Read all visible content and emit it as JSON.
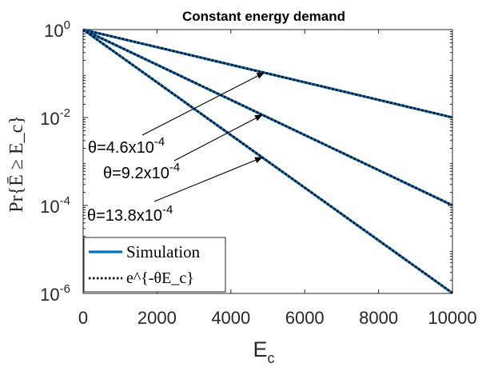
{
  "chart_data": {
    "type": "line",
    "title": "Constant energy demand",
    "xlabel": "E",
    "xlabel_sub": "c",
    "ylabel": "Pr{Ē ≥ E_c}",
    "y_scale": "log",
    "xlim": [
      0,
      10000
    ],
    "ylim": [
      1e-06,
      1
    ],
    "x_ticks": [
      0,
      2000,
      4000,
      6000,
      8000,
      10000
    ],
    "x_tick_labels": [
      "0",
      "2000",
      "4000",
      "6000",
      "8000",
      "10000"
    ],
    "y_ticks": [
      1e-06,
      0.0001,
      0.01,
      1
    ],
    "y_tick_labels": [
      {
        "base": "10",
        "exp": "-6"
      },
      {
        "base": "10",
        "exp": "-4"
      },
      {
        "base": "10",
        "exp": "-2"
      },
      {
        "base": "10",
        "exp": "0"
      }
    ],
    "grid": false,
    "legend": {
      "placement": "bottom-left",
      "entries": [
        {
          "label": "Simulation",
          "style": "solid",
          "color": "#0072BD"
        },
        {
          "label": "e^{-θE_c}",
          "style": "dotted",
          "color": "#000000"
        }
      ]
    },
    "series": [
      {
        "theta": 0.00046,
        "annotation": {
          "prefix": "θ=4.6x10",
          "exp": "-4"
        },
        "x": [
          0,
          10000
        ],
        "y": [
          1,
          0.01005
        ]
      },
      {
        "theta": 0.00092,
        "annotation": {
          "prefix": "θ=9.2x10",
          "exp": "-4"
        },
        "x": [
          0,
          10000
        ],
        "y": [
          1,
          0.000101
        ]
      },
      {
        "theta": 0.00138,
        "annotation": {
          "prefix": "θ=13.8x10",
          "exp": "-4"
        },
        "x": [
          0,
          10000
        ],
        "y": [
          1,
          1.02e-06
        ]
      }
    ],
    "colors": {
      "simulation": "#0072BD",
      "theory": "#000000",
      "axes": "#262626"
    }
  }
}
